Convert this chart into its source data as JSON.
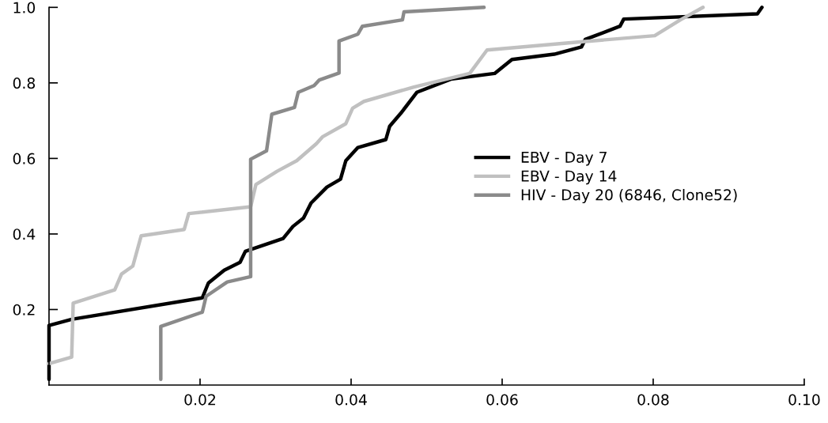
{
  "chart_data": {
    "type": "line",
    "series": [
      {
        "name": "EBV - Day 7",
        "color": "#000000",
        "x": [
          0.0,
          0.0,
          0.003,
          0.0203,
          0.0211,
          0.0232,
          0.0253,
          0.026,
          0.031,
          0.0323,
          0.0337,
          0.0347,
          0.0368,
          0.0386,
          0.0393,
          0.0409,
          0.0446,
          0.0451,
          0.0466,
          0.0487,
          0.0532,
          0.059,
          0.0613,
          0.0669,
          0.0705,
          0.071,
          0.0756,
          0.0761,
          0.0938,
          0.0944
        ],
        "values": [
          0.015,
          0.158,
          0.174,
          0.231,
          0.27,
          0.304,
          0.325,
          0.354,
          0.388,
          0.42,
          0.442,
          0.482,
          0.524,
          0.545,
          0.594,
          0.629,
          0.65,
          0.685,
          0.72,
          0.775,
          0.81,
          0.825,
          0.862,
          0.876,
          0.895,
          0.915,
          0.95,
          0.969,
          0.983,
          1.0
        ]
      },
      {
        "name": "EBV - Day 14",
        "color": "#c0c0c0",
        "x": [
          0.0,
          0.003,
          0.0032,
          0.0087,
          0.0096,
          0.0111,
          0.0122,
          0.0179,
          0.0185,
          0.0267,
          0.0274,
          0.0302,
          0.0328,
          0.0354,
          0.0362,
          0.0393,
          0.0402,
          0.0417,
          0.0483,
          0.0557,
          0.058,
          0.07,
          0.0802,
          0.0836,
          0.0866
        ],
        "values": [
          0.057,
          0.074,
          0.217,
          0.252,
          0.294,
          0.315,
          0.395,
          0.412,
          0.454,
          0.472,
          0.531,
          0.566,
          0.594,
          0.639,
          0.657,
          0.692,
          0.733,
          0.751,
          0.789,
          0.825,
          0.887,
          0.908,
          0.925,
          0.967,
          1.0
        ]
      },
      {
        "name": "HIV - Day 20 (6846, Clone52)",
        "color": "#8a8a8a",
        "x": [
          0.0148,
          0.0148,
          0.0203,
          0.0208,
          0.0236,
          0.0267,
          0.0267,
          0.0288,
          0.0295,
          0.0325,
          0.033,
          0.0351,
          0.0358,
          0.0384,
          0.0384,
          0.0409,
          0.0415,
          0.0468,
          0.047,
          0.0576
        ],
        "values": [
          0.015,
          0.155,
          0.193,
          0.235,
          0.273,
          0.287,
          0.598,
          0.62,
          0.717,
          0.735,
          0.775,
          0.793,
          0.808,
          0.826,
          0.911,
          0.929,
          0.95,
          0.967,
          0.988,
          1.0
        ]
      }
    ],
    "xlim": [
      0,
      0.1
    ],
    "ylim": [
      0,
      1.0
    ],
    "xticks": [
      0.02,
      0.04,
      0.06,
      0.08,
      {
        "value": 0.1,
        "label": "0.10"
      }
    ],
    "yticks": [
      0.2,
      0.4,
      0.6,
      0.8,
      {
        "value": 1.0,
        "label": "1.0"
      }
    ],
    "grid": false,
    "legend": "right",
    "marker": "none",
    "line_style": "solid"
  }
}
